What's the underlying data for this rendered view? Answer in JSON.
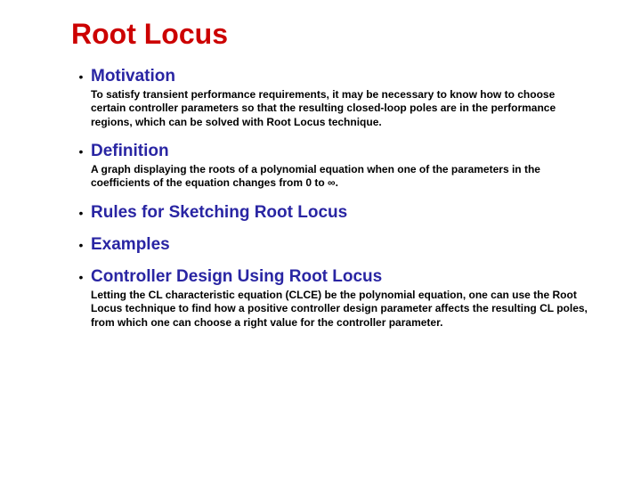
{
  "title": {
    "text": "Root Locus",
    "color": "#cc0000",
    "fontSize": 32
  },
  "bullets": [
    {
      "heading": "Motivation",
      "body": "To satisfy transient performance requirements, it may be necessary to know how to choose certain controller parameters so that the resulting closed-loop poles are in the performance regions, which can be solved with Root Locus technique."
    },
    {
      "heading": "Definition",
      "body": "A graph displaying the roots of a polynomial equation when one of the parameters in the coefficients of the equation changes from 0 to ∞."
    },
    {
      "heading": "Rules for Sketching Root Locus",
      "body": null
    },
    {
      "heading": "Examples",
      "body": null
    },
    {
      "heading": "Controller Design Using Root Locus",
      "body": "Letting the CL characteristic equation (CLCE) be the polynomial equation, one can use the Root Locus technique to find how a positive controller design parameter affects the resulting CL poles, from which one can choose a right value for the controller parameter."
    }
  ],
  "style": {
    "headingColor": "#2925a3",
    "headingFontSize": 19,
    "bodyColor": "#000000",
    "bodyFontSize": 12,
    "bulletDotColor": "#000000",
    "bulletDotFontSize": 14,
    "background": "#ffffff"
  }
}
